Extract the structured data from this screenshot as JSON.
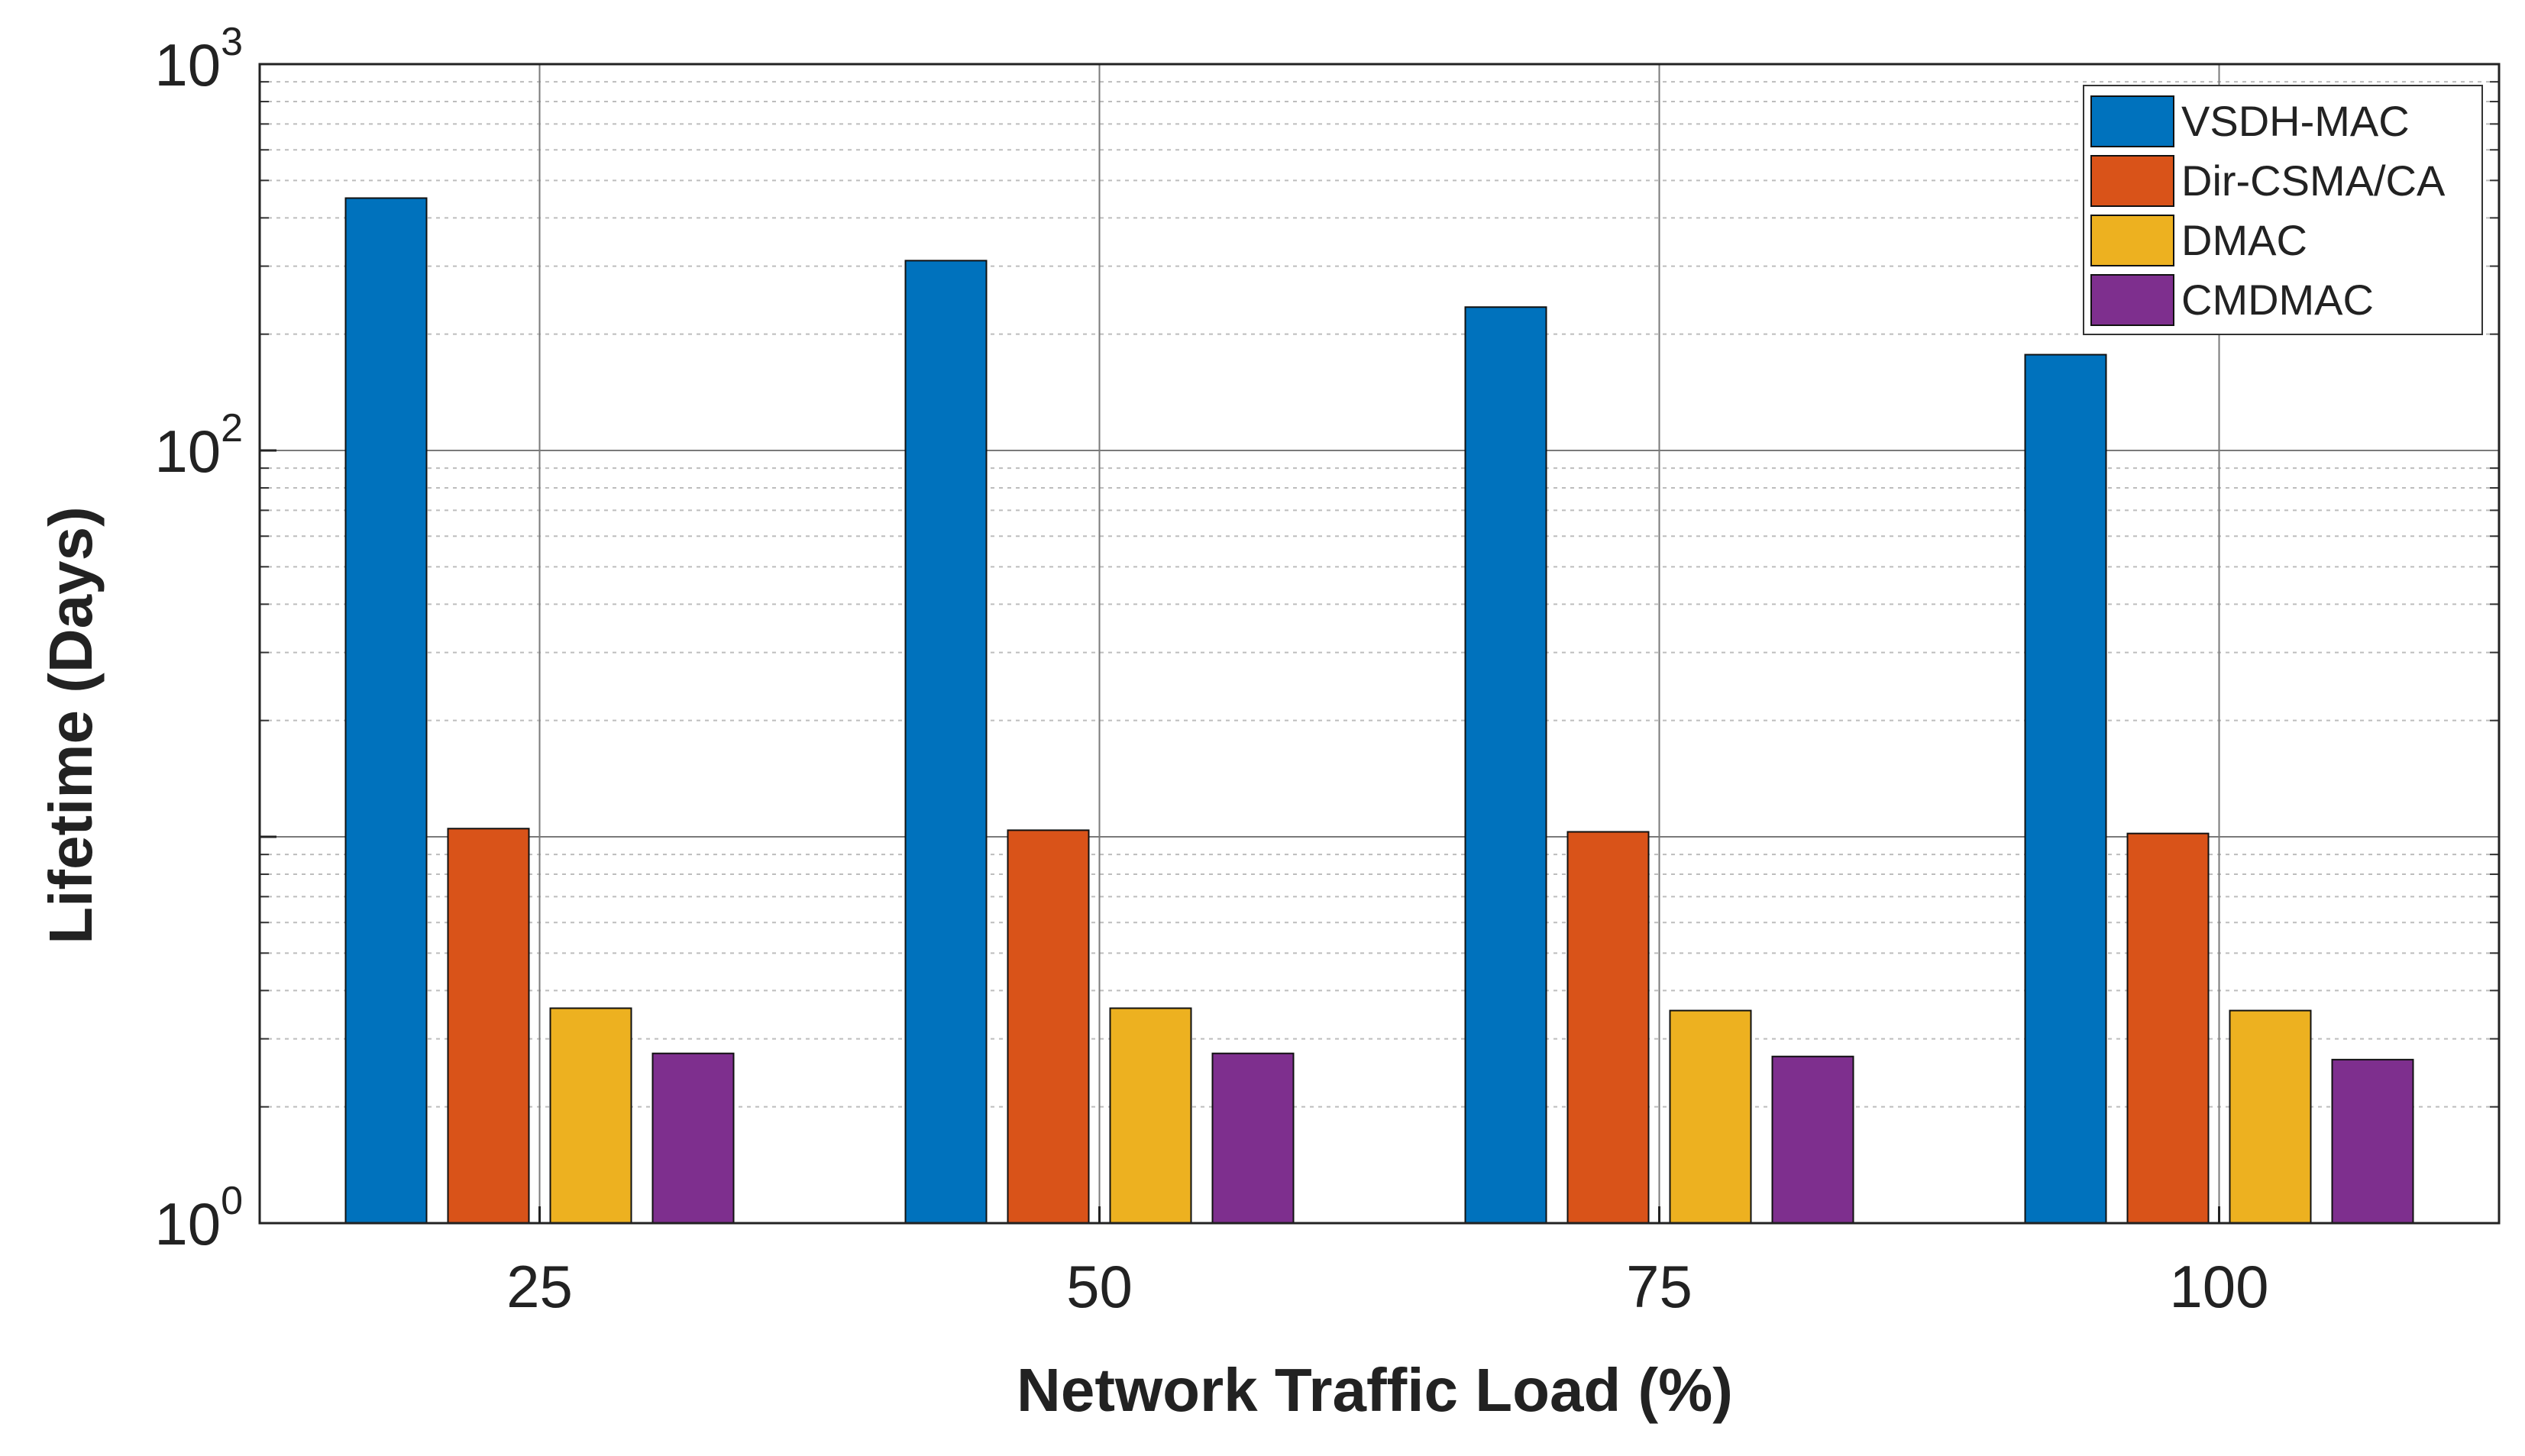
{
  "chart_data": {
    "type": "bar",
    "title": "",
    "xlabel": "Network Traffic Load (%)",
    "ylabel": "Lifetime (Days)",
    "y_scale": "log",
    "ylim": [
      1,
      1000
    ],
    "grid": true,
    "legend_position": "top-right",
    "categories": [
      "25",
      "50",
      "75",
      "100"
    ],
    "y_tick_labels": [
      {
        "value": 1,
        "base": "10",
        "exp": "0"
      },
      {
        "value": 100,
        "base": "10",
        "exp": "2"
      },
      {
        "value": 1000,
        "base": "10",
        "exp": "3"
      }
    ],
    "series": [
      {
        "name": "VSDH-MAC",
        "color": "#0072BD",
        "values": [
          450,
          310,
          235,
          177
        ]
      },
      {
        "name": "Dir-CSMA/CA",
        "color": "#D95319",
        "values": [
          10.5,
          10.4,
          10.3,
          10.2
        ]
      },
      {
        "name": "DMAC",
        "color": "#EDB120",
        "values": [
          3.6,
          3.6,
          3.55,
          3.55
        ]
      },
      {
        "name": "CMDMAC",
        "color": "#7E2F8E",
        "values": [
          2.75,
          2.75,
          2.7,
          2.65
        ]
      }
    ]
  }
}
